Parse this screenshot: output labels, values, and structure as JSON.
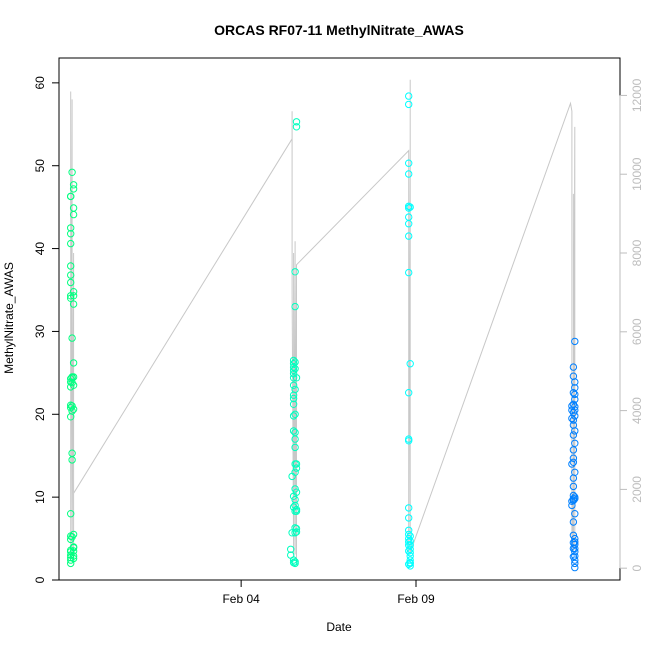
{
  "chart_data": {
    "type": "scatter",
    "title": "ORCAS RF07-11 MethylNitrate_AWAS",
    "xlabel": "Date",
    "ylabel": "MethylNitrate_AWAS",
    "x_tick_labels": [
      "Feb 04",
      "Feb 09"
    ],
    "x_ticks": [
      "2016-02-04",
      "2016-02-09"
    ],
    "xlim": [
      "2016-01-29T19:00",
      "2016-02-14T20:00"
    ],
    "ylim": [
      0,
      63
    ],
    "y_ticks": [
      0,
      10,
      20,
      30,
      40,
      50,
      60
    ],
    "y2_ticks": [
      0,
      2000,
      4000,
      6000,
      8000,
      10000,
      12000
    ],
    "y2lim": [
      -300,
      12950
    ],
    "grid": false,
    "colors": {
      "axis": "#000000",
      "right_axis": "#bdbdbd",
      "altitude_line": "#c8c8c8",
      "flight_1": "#00ff80",
      "flight_2": "#00ffbf",
      "flight_3": "#00ffff",
      "flight_4": "#0080ff"
    },
    "series": [
      {
        "color": "#00ff80",
        "x": [
          "2016-01-30T03:00",
          "2016-01-30T03:00",
          "2016-01-30T03:00",
          "2016-01-30T03:00",
          "2016-01-30T03:00",
          "2016-01-30T03:00",
          "2016-01-30T03:00",
          "2016-01-30T03:00",
          "2016-01-30T03:00",
          "2016-01-30T03:00",
          "2016-01-30T03:00",
          "2016-01-30T03:00",
          "2016-01-30T03:00",
          "2016-01-30T03:00",
          "2016-01-30T03:00",
          "2016-01-30T03:00",
          "2016-01-30T03:00",
          "2016-01-30T03:00",
          "2016-01-30T03:00",
          "2016-01-30T03:00",
          "2016-01-30T03:00",
          "2016-01-30T03:00",
          "2016-01-30T03:00",
          "2016-01-30T03:00",
          "2016-01-30T03:00",
          "2016-01-30T04:00",
          "2016-01-30T04:00",
          "2016-01-30T04:00",
          "2016-01-30T04:00",
          "2016-01-30T04:00",
          "2016-01-30T04:00",
          "2016-01-30T04:00",
          "2016-01-30T04:00",
          "2016-01-30T04:00",
          "2016-01-30T04:00",
          "2016-01-30T05:00",
          "2016-01-30T05:00",
          "2016-01-30T05:00",
          "2016-01-30T05:00",
          "2016-01-30T05:00",
          "2016-01-30T05:00",
          "2016-01-30T05:00",
          "2016-01-30T05:00",
          "2016-01-30T05:00",
          "2016-01-30T05:00",
          "2016-01-30T05:00",
          "2016-01-30T05:00",
          "2016-01-30T05:00",
          "2016-01-30T05:00",
          "2016-01-30T05:00",
          "2016-01-30T05:00",
          "2016-01-30T05:00"
        ],
        "y": [
          46.3,
          46.3,
          42.5,
          41.8,
          40.6,
          37.9,
          36.8,
          35.9,
          34.3,
          34.0,
          23.3,
          23.9,
          21.1,
          20.8,
          19.7,
          8.0,
          5.3,
          4.9,
          3.6,
          3.4,
          3.0,
          2.7,
          2.4,
          2.0,
          24.3,
          29.2,
          24.5,
          24.4,
          23.8,
          20.4,
          21.0,
          15.3,
          14.5,
          5.2,
          49.2,
          47.7,
          47.2,
          44.9,
          44.1,
          34.8,
          34.3,
          33.3,
          26.2,
          24.5,
          23.5,
          20.6,
          5.5,
          4.0,
          3.9,
          3.5,
          2.9,
          2.6
        ]
      },
      {
        "color": "#00ffbf",
        "x": [
          "2016-02-05T10:00",
          "2016-02-05T10:00",
          "2016-02-05T11:00",
          "2016-02-05T11:00",
          "2016-02-05T12:00",
          "2016-02-05T12:00",
          "2016-02-05T12:00",
          "2016-02-05T12:00",
          "2016-02-05T12:00",
          "2016-02-05T12:00",
          "2016-02-05T12:00",
          "2016-02-05T12:00",
          "2016-02-05T12:00",
          "2016-02-05T12:00",
          "2016-02-05T12:00",
          "2016-02-05T12:00",
          "2016-02-05T12:00",
          "2016-02-05T12:00",
          "2016-02-05T12:00",
          "2016-02-05T12:00",
          "2016-02-05T13:00",
          "2016-02-05T13:00",
          "2016-02-05T13:00",
          "2016-02-05T13:00",
          "2016-02-05T13:00",
          "2016-02-05T13:00",
          "2016-02-05T13:00",
          "2016-02-05T13:00",
          "2016-02-05T13:00",
          "2016-02-05T13:00",
          "2016-02-05T13:00",
          "2016-02-05T13:00",
          "2016-02-05T13:00",
          "2016-02-05T13:00",
          "2016-02-05T13:00",
          "2016-02-05T13:00",
          "2016-02-05T13:00",
          "2016-02-05T13:00",
          "2016-02-05T13:00",
          "2016-02-05T14:00",
          "2016-02-05T14:00",
          "2016-02-05T14:00",
          "2016-02-05T14:00",
          "2016-02-05T14:00",
          "2016-02-05T14:00",
          "2016-02-05T14:00",
          "2016-02-05T14:00",
          "2016-02-05T14:00",
          "2016-02-05T14:00"
        ],
        "y": [
          3.7,
          3.0,
          12.5,
          5.7,
          26.5,
          26.1,
          25.7,
          25.3,
          24.9,
          24.4,
          23.5,
          22.3,
          21.9,
          21.2,
          19.8,
          18.0,
          10.1,
          8.8,
          2.4,
          2.1,
          37.2,
          33.0,
          26.3,
          25.5,
          23.0,
          20.0,
          17.8,
          17.0,
          16.0,
          14.0,
          13.0,
          11.0,
          9.7,
          9.0,
          8.3,
          6.3,
          5.7,
          2.2,
          2.0,
          55.3,
          54.7,
          24.4,
          14.0,
          13.5,
          10.6,
          8.5,
          8.3,
          6.2,
          5.8
        ]
      },
      {
        "color": "#00ffff",
        "x": [
          "2016-02-08T19:00",
          "2016-02-08T19:00",
          "2016-02-08T19:00",
          "2016-02-08T19:00",
          "2016-02-08T19:00",
          "2016-02-08T19:00",
          "2016-02-08T19:00",
          "2016-02-08T19:00",
          "2016-02-08T19:00",
          "2016-02-08T19:00",
          "2016-02-08T19:00",
          "2016-02-08T19:00",
          "2016-02-08T19:00",
          "2016-02-08T19:00",
          "2016-02-08T19:00",
          "2016-02-08T19:00",
          "2016-02-08T19:00",
          "2016-02-08T19:00",
          "2016-02-08T19:00",
          "2016-02-08T19:00",
          "2016-02-08T19:00",
          "2016-02-08T19:00",
          "2016-02-08T20:00",
          "2016-02-08T20:00",
          "2016-02-08T20:00",
          "2016-02-08T20:00",
          "2016-02-08T20:00",
          "2016-02-08T20:00",
          "2016-02-08T20:00",
          "2016-02-08T20:00",
          "2016-02-08T20:00",
          "2016-02-08T20:00",
          "2016-02-08T20:00",
          "2016-02-08T20:00"
        ],
        "y": [
          58.4,
          57.4,
          50.3,
          49.0,
          45.1,
          44.9,
          43.8,
          43.0,
          41.5,
          37.1,
          22.6,
          17.0,
          16.8,
          8.7,
          7.5,
          6.0,
          5.5,
          5.0,
          4.6,
          4.2,
          3.5,
          1.9,
          45.0,
          26.1,
          5.3,
          4.7,
          4.2,
          3.7,
          3.3,
          2.9,
          2.4,
          2.1,
          2.0,
          1.7
        ]
      },
      {
        "color": "#0080ff",
        "x": [
          "2016-02-13T11:00",
          "2016-02-13T11:00",
          "2016-02-13T11:00",
          "2016-02-13T11:00",
          "2016-02-13T11:00",
          "2016-02-13T11:00",
          "2016-02-13T12:00",
          "2016-02-13T12:00",
          "2016-02-13T12:00",
          "2016-02-13T12:00",
          "2016-02-13T12:00",
          "2016-02-13T12:00",
          "2016-02-13T12:00",
          "2016-02-13T12:00",
          "2016-02-13T12:00",
          "2016-02-13T12:00",
          "2016-02-13T12:00",
          "2016-02-13T12:00",
          "2016-02-13T12:00",
          "2016-02-13T12:00",
          "2016-02-13T12:00",
          "2016-02-13T12:00",
          "2016-02-13T12:00",
          "2016-02-13T12:00",
          "2016-02-13T12:00",
          "2016-02-13T12:00",
          "2016-02-13T12:00",
          "2016-02-13T13:00",
          "2016-02-13T13:00",
          "2016-02-13T13:00",
          "2016-02-13T13:00",
          "2016-02-13T13:00",
          "2016-02-13T13:00",
          "2016-02-13T13:00",
          "2016-02-13T13:00",
          "2016-02-13T13:00",
          "2016-02-13T13:00",
          "2016-02-13T13:00",
          "2016-02-13T13:00",
          "2016-02-13T13:00",
          "2016-02-13T13:00",
          "2016-02-13T13:00",
          "2016-02-13T13:00",
          "2016-02-13T13:00",
          "2016-02-13T13:00",
          "2016-02-13T13:00",
          "2016-02-13T13:00",
          "2016-02-13T13:00",
          "2016-02-13T13:00",
          "2016-02-13T13:00"
        ],
        "y": [
          21.0,
          20.5,
          19.5,
          14.0,
          9.5,
          9.0,
          25.7,
          24.6,
          22.6,
          21.2,
          20.2,
          19.3,
          18.7,
          17.5,
          15.7,
          14.7,
          14.2,
          12.3,
          11.3,
          10.2,
          9.8,
          9.6,
          7.0,
          5.4,
          4.5,
          3.8,
          2.8,
          28.8,
          23.9,
          23.2,
          22.4,
          21.8,
          20.9,
          20.5,
          19.8,
          18.0,
          16.5,
          13.0,
          10.0,
          9.8,
          8.0,
          5.0,
          4.6,
          4.3,
          3.8,
          3.4,
          2.9,
          2.4,
          2.0,
          1.5
        ]
      }
    ],
    "altitude_line": {
      "color": "#c8c8c8",
      "x": [
        "2016-01-30T03:00",
        "2016-01-30T03:00",
        "2016-01-30T03:00",
        "2016-01-30T03:00",
        "2016-01-30T04:00",
        "2016-01-30T04:00",
        "2016-01-30T04:00",
        "2016-01-30T04:00",
        "2016-01-30T05:00",
        "2016-01-30T05:00",
        "2016-01-30T05:00",
        "2016-01-30T05:00",
        "2016-01-30T05:00",
        "2016-02-05T11:00",
        "2016-02-05T11:00",
        "2016-02-05T11:00",
        "2016-02-05T12:00",
        "2016-02-05T12:00",
        "2016-02-05T12:00",
        "2016-02-05T12:00",
        "2016-02-05T13:00",
        "2016-02-05T13:00",
        "2016-02-05T13:00",
        "2016-02-05T13:00",
        "2016-02-05T14:00",
        "2016-02-05T14:00",
        "2016-02-05T14:00",
        "2016-02-05T14:00",
        "2016-02-05T14:00",
        "2016-02-05T14:00",
        "2016-02-08T19:00",
        "2016-02-08T19:00",
        "2016-02-08T19:00",
        "2016-02-08T20:00",
        "2016-02-08T20:00",
        "2016-02-08T20:00",
        "2016-02-08T20:00",
        "2016-02-08T20:00",
        "2016-02-08T20:00",
        "2016-02-08T20:00",
        "2016-02-13T10:00",
        "2016-02-13T11:00",
        "2016-02-13T11:00",
        "2016-02-13T11:00",
        "2016-02-13T12:00",
        "2016-02-13T12:00",
        "2016-02-13T12:00",
        "2016-02-13T12:00",
        "2016-02-13T12:00",
        "2016-02-13T13:00",
        "2016-02-13T13:00",
        "2016-02-13T13:00",
        "2016-02-13T13:00",
        "2016-02-13T13:00"
      ],
      "y": [
        12100,
        600,
        12100,
        600,
        11700,
        500,
        11900,
        300,
        8000,
        300,
        7700,
        2000,
        1900,
        10900,
        11600,
        7000,
        400,
        8000,
        300,
        8000,
        350,
        8300,
        400,
        7700,
        200,
        7200,
        400,
        7400,
        400,
        7700,
        10600,
        400,
        10600,
        400,
        10300,
        500,
        12400,
        450,
        8200,
        400,
        11800,
        11600,
        400,
        2300,
        350,
        9500,
        500,
        2800,
        400,
        11200,
        500,
        7300,
        600,
        600
      ]
    }
  }
}
